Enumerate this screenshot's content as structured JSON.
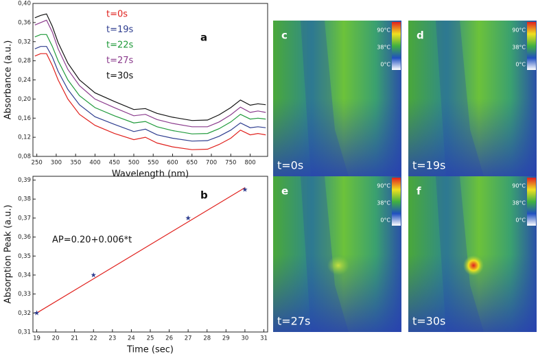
{
  "chart_data": [
    {
      "type": "line",
      "label": "a",
      "xlabel": "Wavelength (nm)",
      "ylabel": "Absorbance (a.u.)",
      "x": [
        245,
        260,
        275,
        290,
        305,
        330,
        360,
        400,
        450,
        500,
        530,
        560,
        600,
        650,
        690,
        720,
        750,
        775,
        800,
        820,
        840
      ],
      "series": [
        {
          "name": "t=0s",
          "color": "#e0201c",
          "values": [
            0.29,
            0.295,
            0.295,
            0.27,
            0.24,
            0.2,
            0.168,
            0.145,
            0.128,
            0.115,
            0.12,
            0.108,
            0.1,
            0.094,
            0.095,
            0.105,
            0.118,
            0.135,
            0.125,
            0.128,
            0.125
          ]
        },
        {
          "name": "t=19s",
          "color": "#2e3d8f",
          "values": [
            0.305,
            0.31,
            0.31,
            0.288,
            0.258,
            0.22,
            0.188,
            0.163,
            0.147,
            0.132,
            0.137,
            0.125,
            0.118,
            0.112,
            0.113,
            0.122,
            0.135,
            0.15,
            0.14,
            0.142,
            0.14
          ]
        },
        {
          "name": "t=22s",
          "color": "#1f9a3a",
          "values": [
            0.33,
            0.335,
            0.335,
            0.31,
            0.28,
            0.24,
            0.207,
            0.182,
            0.165,
            0.15,
            0.153,
            0.142,
            0.134,
            0.127,
            0.128,
            0.138,
            0.152,
            0.168,
            0.158,
            0.16,
            0.158
          ]
        },
        {
          "name": "t=27s",
          "color": "#8a3a8c",
          "values": [
            0.355,
            0.36,
            0.365,
            0.34,
            0.305,
            0.262,
            0.228,
            0.2,
            0.182,
            0.165,
            0.168,
            0.157,
            0.149,
            0.142,
            0.142,
            0.152,
            0.167,
            0.183,
            0.172,
            0.175,
            0.172
          ]
        },
        {
          "name": "t=30s",
          "color": "#111111",
          "values": [
            0.37,
            0.375,
            0.378,
            0.352,
            0.318,
            0.275,
            0.24,
            0.213,
            0.195,
            0.178,
            0.18,
            0.17,
            0.162,
            0.155,
            0.156,
            0.167,
            0.182,
            0.198,
            0.187,
            0.19,
            0.188
          ]
        }
      ],
      "xlim": [
        240,
        845
      ],
      "xticks": [
        250,
        300,
        350,
        400,
        450,
        500,
        550,
        600,
        650,
        700,
        750,
        800
      ],
      "ylim": [
        0.08,
        0.4
      ],
      "yticks": [
        {
          "value": 0.08,
          "label": "0,08"
        },
        {
          "value": 0.12,
          "label": "0,12"
        },
        {
          "value": 0.16,
          "label": "0,16"
        },
        {
          "value": 0.2,
          "label": "0,20"
        },
        {
          "value": 0.24,
          "label": "0,24"
        },
        {
          "value": 0.28,
          "label": "0,28"
        },
        {
          "value": 0.32,
          "label": "0,32"
        },
        {
          "value": 0.36,
          "label": "0,36"
        },
        {
          "value": 0.4,
          "label": "0,40"
        }
      ]
    },
    {
      "type": "scatter",
      "label": "b",
      "xlabel": "Time (sec)",
      "ylabel": "Absorption Peak (a.u.)",
      "annotation": "AP=0.20+0.006*t",
      "color": "#2e3d8f",
      "x": [
        19,
        22,
        27,
        30
      ],
      "values": [
        0.32,
        0.34,
        0.37,
        0.385
      ],
      "fit": {
        "color": "#e0201c",
        "x": [
          19,
          30
        ],
        "values": [
          0.32,
          0.386
        ]
      },
      "xlim": [
        18.8,
        31.2
      ],
      "xticks": [
        19,
        20,
        21,
        22,
        23,
        24,
        25,
        26,
        27,
        28,
        29,
        30,
        31
      ],
      "ylim": [
        0.31,
        0.392
      ],
      "yticks": [
        {
          "value": 0.31,
          "label": "0,31"
        },
        {
          "value": 0.32,
          "label": "0,32"
        },
        {
          "value": 0.33,
          "label": "0,33"
        },
        {
          "value": 0.34,
          "label": "0,34"
        },
        {
          "value": 0.35,
          "label": "0,35"
        },
        {
          "value": 0.36,
          "label": "0,36"
        },
        {
          "value": 0.37,
          "label": "0,37"
        },
        {
          "value": 0.38,
          "label": "0,38"
        },
        {
          "value": 0.39,
          "label": "0,39"
        }
      ]
    }
  ],
  "images": {
    "scale_labels": [
      "90°C",
      "38°C",
      "0°C"
    ],
    "panels": [
      {
        "label": "c",
        "time": "t=0s"
      },
      {
        "label": "d",
        "time": "t=19s"
      },
      {
        "label": "e",
        "time": "t=27s"
      },
      {
        "label": "f",
        "time": "t=30s"
      }
    ]
  }
}
